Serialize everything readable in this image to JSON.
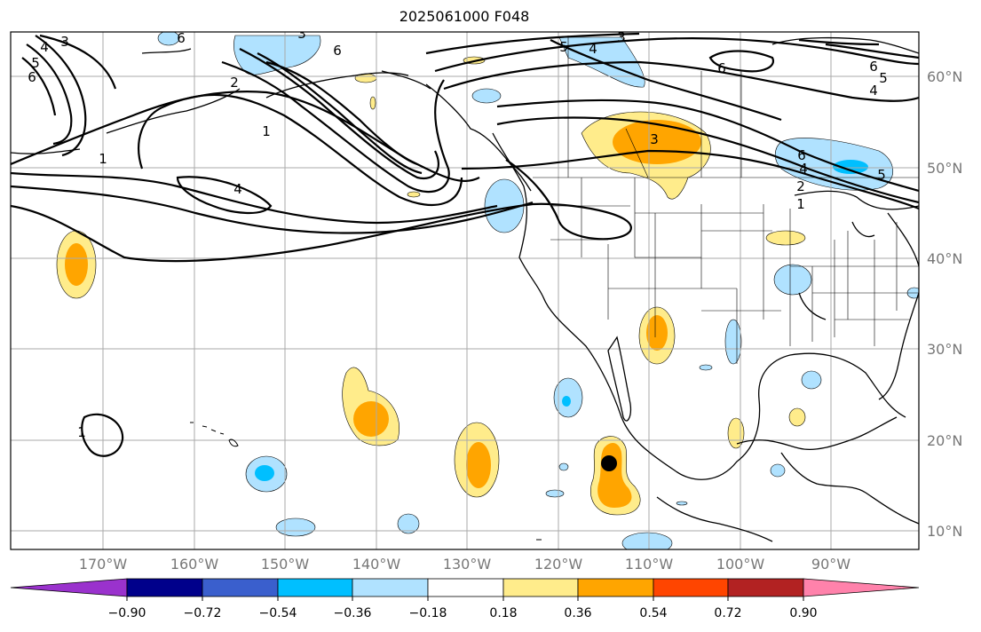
{
  "title": "2025061000 F048",
  "lat_labels": [
    "60°N",
    "50°N",
    "40°N",
    "30°N",
    "20°N",
    "10°N"
  ],
  "lon_labels": [
    "170°W",
    "160°W",
    "150°W",
    "140°W",
    "130°W",
    "120°W",
    "110°W",
    "100°W",
    "90°W"
  ],
  "colorbar": {
    "ticks": [
      "−0.90",
      "−0.72",
      "−0.54",
      "−0.36",
      "−0.18",
      "0.18",
      "0.36",
      "0.54",
      "0.72",
      "0.90"
    ],
    "colors": [
      "#9a32cd",
      "#00008b",
      "#3a5fcd",
      "#00bfff",
      "#b0e2ff",
      "#ffffff",
      "#ffec8b",
      "#ffa500",
      "#ff4500",
      "#b22222",
      "#ff82ab"
    ]
  },
  "contour_labels": [
    {
      "text": "4"
    },
    {
      "text": "3"
    },
    {
      "text": "5"
    },
    {
      "text": "6"
    },
    {
      "text": "2"
    },
    {
      "text": "1"
    },
    {
      "text": "4"
    },
    {
      "text": "6"
    },
    {
      "text": "3"
    },
    {
      "text": "1"
    },
    {
      "text": "5"
    },
    {
      "text": "4"
    },
    {
      "text": "3"
    },
    {
      "text": "6"
    },
    {
      "text": "3"
    },
    {
      "text": "6"
    },
    {
      "text": "5"
    },
    {
      "text": "4"
    },
    {
      "text": "6"
    },
    {
      "text": "4"
    },
    {
      "text": "2"
    },
    {
      "text": "1"
    },
    {
      "text": "5"
    },
    {
      "text": "1"
    },
    {
      "text": "6"
    }
  ]
}
